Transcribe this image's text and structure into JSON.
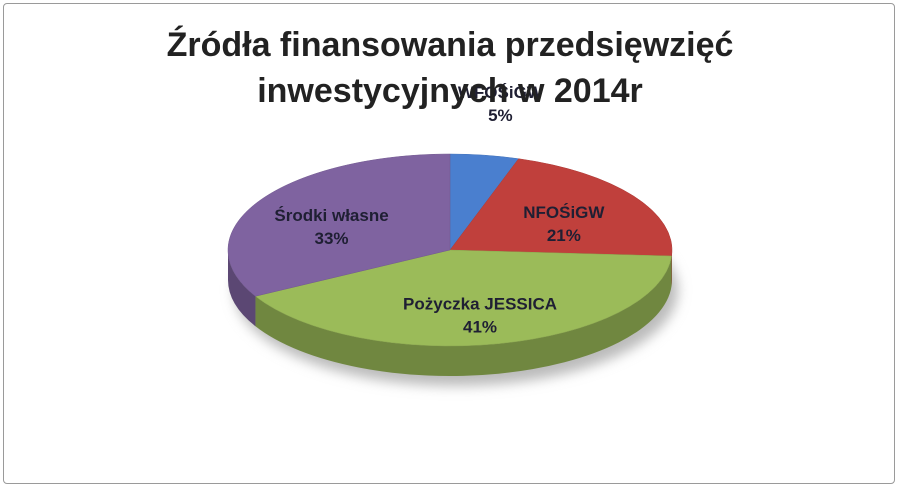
{
  "chart_data": {
    "type": "pie",
    "title": "Źródła finansowania przedsięwzięć inwestycyjnych w 2014r",
    "categories": [
      "WFOŚiGW",
      "NFOŚiGW",
      "Pożyczka JESSICA",
      "Środki własne"
    ],
    "values": [
      5,
      21,
      41,
      33
    ],
    "value_labels": [
      "5%",
      "21%",
      "41%",
      "33%"
    ],
    "colors": [
      "#4a7fcf",
      "#c0403c",
      "#9bbb59",
      "#7f63a0"
    ]
  }
}
